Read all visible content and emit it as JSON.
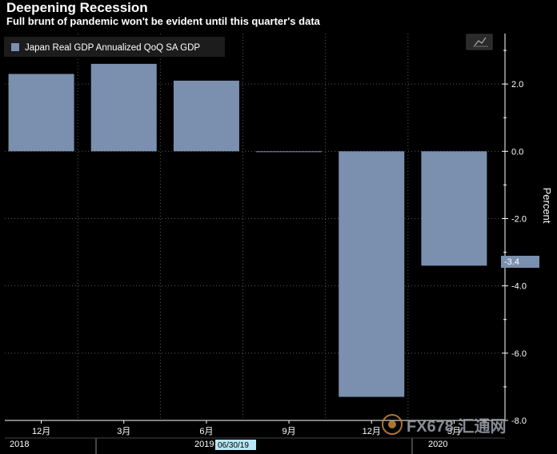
{
  "header": {
    "title": "Deepening Recession",
    "subtitle": "Full brunt of pandemic won't be evident until this quarter's data"
  },
  "legend": {
    "label": "Japan Real GDP Annualized QoQ SA GDP"
  },
  "last_value_label": "-3.4",
  "date_marker": "06/30/19",
  "watermark": "FX678 汇通网",
  "colors": {
    "bar": "#7b8fae",
    "background": "#000000",
    "grid": "#555555",
    "marker_bg": "#b7e6f5"
  },
  "chart_data": {
    "type": "bar",
    "categories": [
      "12月",
      "3月",
      "6月",
      "9月",
      "12月",
      "3月"
    ],
    "year_labels": [
      "2018",
      "2019",
      "2020"
    ],
    "values": [
      2.3,
      2.6,
      2.1,
      0.0,
      -7.3,
      -3.4
    ],
    "ylabel": "Percent",
    "ylim": [
      -8,
      3.5
    ],
    "yticks": [
      2.0,
      0.0,
      -2.0,
      -4.0,
      -6.0,
      -8.0
    ],
    "ytick_labels": [
      "2.0",
      "0.0",
      "-2.0",
      "-4.0",
      "-6.0",
      "-8.0"
    ],
    "grid": true,
    "legend_position": "top-left"
  }
}
